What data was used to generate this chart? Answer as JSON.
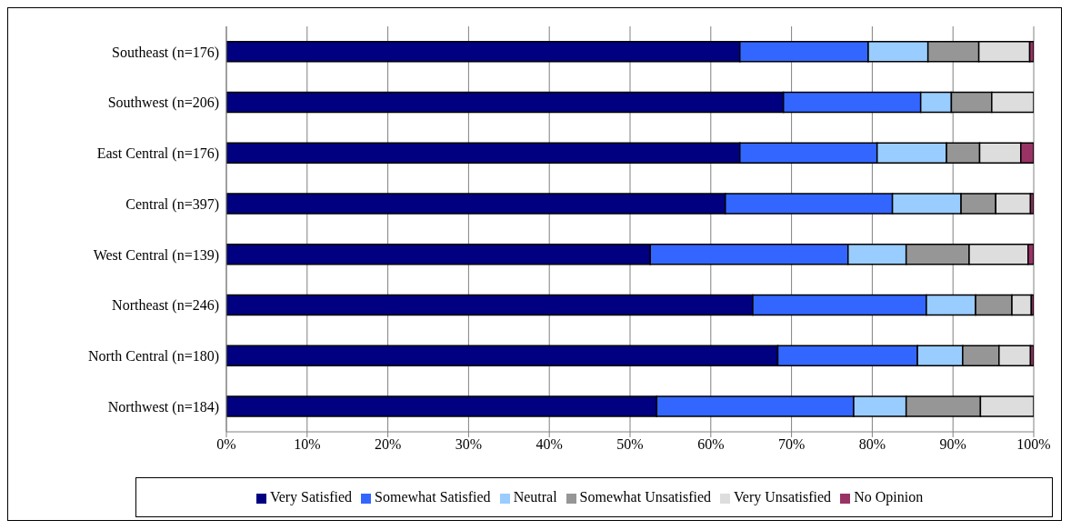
{
  "chart_data": {
    "type": "bar",
    "orientation": "horizontal",
    "stacked": true,
    "categories": [
      "Southeast (n=176)",
      "Southwest (n=206)",
      "East Central (n=176)",
      "Central (n=397)",
      "West Central (n=139)",
      "Northeast (n=246)",
      "North Central (n=180)",
      "Northwest (n=184)"
    ],
    "series": [
      {
        "name": "Very Satisfied",
        "color": "#000080",
        "values": [
          63.6,
          69.0,
          63.6,
          61.8,
          52.5,
          65.2,
          68.3,
          53.3
        ]
      },
      {
        "name": "Somewhat Satisfied",
        "color": "#3366ff",
        "values": [
          15.9,
          17.0,
          17.0,
          20.7,
          24.5,
          21.5,
          17.3,
          24.4
        ]
      },
      {
        "name": "Neutral",
        "color": "#99ccff",
        "values": [
          7.4,
          3.8,
          8.6,
          8.5,
          7.2,
          6.1,
          5.6,
          6.5
        ]
      },
      {
        "name": "Somewhat Unsatisfied",
        "color": "#969696",
        "values": [
          6.3,
          5.0,
          4.1,
          4.3,
          7.8,
          4.5,
          4.5,
          9.2
        ]
      },
      {
        "name": "Very Unsatisfied",
        "color": "#dddddd",
        "values": [
          6.3,
          5.2,
          5.1,
          4.3,
          7.3,
          2.4,
          3.9,
          6.6
        ]
      },
      {
        "name": "No Opinion",
        "color": "#993366",
        "values": [
          0.5,
          0,
          1.6,
          0.4,
          0.7,
          0.3,
          0.4,
          0
        ]
      }
    ],
    "xlim": [
      0,
      100
    ],
    "xticks": [
      {
        "value": 0,
        "label": "0%"
      },
      {
        "value": 10,
        "label": "10%"
      },
      {
        "value": 20,
        "label": "20%"
      },
      {
        "value": 30,
        "label": "30%"
      },
      {
        "value": 40,
        "label": "40%"
      },
      {
        "value": 50,
        "label": "50%"
      },
      {
        "value": 60,
        "label": "60%"
      },
      {
        "value": 70,
        "label": "70%"
      },
      {
        "value": 80,
        "label": "80%"
      },
      {
        "value": 90,
        "label": "90%"
      },
      {
        "value": 100,
        "label": "100%"
      }
    ],
    "grid": "x",
    "legend": "bottom"
  }
}
